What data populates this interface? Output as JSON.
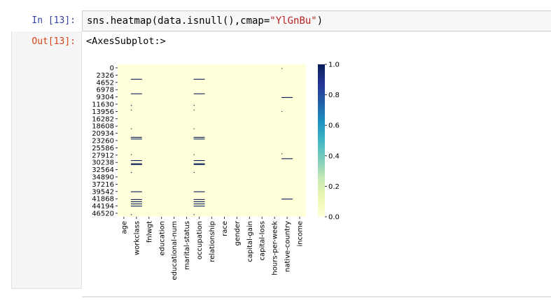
{
  "cell": {
    "in_prompt": "In [13]:",
    "code_prefix": "sns.heatmap(data.isnull(),cmap=",
    "code_string": "\"YlGnBu\"",
    "code_suffix": ")",
    "out_prompt": "Out[13]:",
    "output_text": "<AxesSubplot:>"
  },
  "chart_data": {
    "type": "heatmap",
    "colormap": "YlGnBu",
    "row_labels": [
      "0",
      "2326",
      "4652",
      "6978",
      "9304",
      "11630",
      "13956",
      "16282",
      "18608",
      "20934",
      "23260",
      "25586",
      "27912",
      "30238",
      "32564",
      "34890",
      "37216",
      "39542",
      "41868",
      "44194",
      "46520"
    ],
    "columns": [
      "age",
      "workclass",
      "fnlwgt",
      "education",
      "educational-num",
      "marital-status",
      "occupation",
      "relationship",
      "race",
      "gender",
      "capital-gain",
      "capital-loss",
      "hours-per-week",
      "native-country",
      "income"
    ],
    "colorbar": {
      "min": 0.0,
      "max": 1.0,
      "ticks": [
        "0.0",
        "0.2",
        "0.4",
        "0.6",
        "0.8",
        "1.0"
      ]
    },
    "missing_columns": [
      "workclass",
      "occupation",
      "native-country"
    ],
    "colors": {
      "low": "#ffffd9",
      "high": "#081d58"
    }
  }
}
